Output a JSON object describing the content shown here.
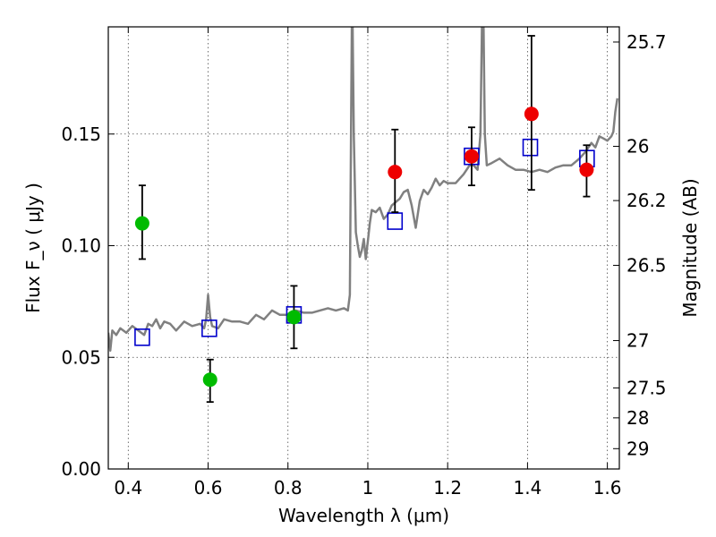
{
  "chart_data": {
    "type": "scatter",
    "xlabel": "Wavelength  λ (μm)",
    "ylabel": "Flux  F_ν  ( μJy )",
    "ylabel_right": "Magnitude (AB)",
    "xlim": [
      0.35,
      1.63
    ],
    "ylim": [
      0.0,
      0.198
    ],
    "grid": true,
    "x_ticks": [
      0.4,
      0.6,
      0.8,
      1.0,
      1.2,
      1.4,
      1.6
    ],
    "x_tick_labels": [
      "0.4",
      "0.6",
      "0.8",
      "1",
      "1.2",
      "1.4",
      "1.6"
    ],
    "y_ticks": [
      0.0,
      0.05,
      0.1,
      0.15
    ],
    "y_tick_labels": [
      "0.00",
      "0.05",
      "0.10",
      "0.15"
    ],
    "right_ticks": [
      {
        "label": "25.7",
        "flux": 0.1912
      },
      {
        "label": "26",
        "flux": 0.1445
      },
      {
        "label": "26.2",
        "flux": 0.1202
      },
      {
        "label": "26.5",
        "flux": 0.0912
      },
      {
        "label": "27",
        "flux": 0.0575
      },
      {
        "label": "27.5",
        "flux": 0.0363
      },
      {
        "label": "28",
        "flux": 0.0229
      },
      {
        "label": "29",
        "flux": 0.0091
      }
    ],
    "series": [
      {
        "kind": "line",
        "color": "#808080",
        "points": [
          [
            0.35,
            0.061
          ],
          [
            0.355,
            0.053
          ],
          [
            0.36,
            0.062
          ],
          [
            0.37,
            0.06
          ],
          [
            0.38,
            0.063
          ],
          [
            0.395,
            0.061
          ],
          [
            0.41,
            0.064
          ],
          [
            0.425,
            0.062
          ],
          [
            0.44,
            0.06
          ],
          [
            0.45,
            0.065
          ],
          [
            0.46,
            0.064
          ],
          [
            0.47,
            0.067
          ],
          [
            0.48,
            0.063
          ],
          [
            0.49,
            0.066
          ],
          [
            0.505,
            0.065
          ],
          [
            0.52,
            0.062
          ],
          [
            0.54,
            0.066
          ],
          [
            0.56,
            0.064
          ],
          [
            0.58,
            0.065
          ],
          [
            0.59,
            0.063
          ],
          [
            0.595,
            0.067
          ],
          [
            0.6,
            0.078
          ],
          [
            0.605,
            0.068
          ],
          [
            0.61,
            0.064
          ],
          [
            0.625,
            0.063
          ],
          [
            0.64,
            0.067
          ],
          [
            0.66,
            0.066
          ],
          [
            0.68,
            0.066
          ],
          [
            0.7,
            0.065
          ],
          [
            0.72,
            0.069
          ],
          [
            0.74,
            0.067
          ],
          [
            0.76,
            0.071
          ],
          [
            0.78,
            0.069
          ],
          [
            0.8,
            0.069
          ],
          [
            0.82,
            0.071
          ],
          [
            0.84,
            0.07
          ],
          [
            0.86,
            0.07
          ],
          [
            0.88,
            0.071
          ],
          [
            0.9,
            0.072
          ],
          [
            0.92,
            0.071
          ],
          [
            0.94,
            0.072
          ],
          [
            0.95,
            0.071
          ],
          [
            0.955,
            0.078
          ],
          [
            0.958,
            0.15
          ],
          [
            0.96,
            0.198
          ],
          [
            0.962,
            0.198
          ],
          [
            0.965,
            0.15
          ],
          [
            0.97,
            0.106
          ],
          [
            0.975,
            0.1
          ],
          [
            0.98,
            0.095
          ],
          [
            0.985,
            0.098
          ],
          [
            0.99,
            0.103
          ],
          [
            0.995,
            0.094
          ],
          [
            1.0,
            0.102
          ],
          [
            1.005,
            0.11
          ],
          [
            1.01,
            0.116
          ],
          [
            1.02,
            0.115
          ],
          [
            1.03,
            0.117
          ],
          [
            1.04,
            0.112
          ],
          [
            1.05,
            0.114
          ],
          [
            1.06,
            0.118
          ],
          [
            1.08,
            0.121
          ],
          [
            1.09,
            0.124
          ],
          [
            1.1,
            0.125
          ],
          [
            1.11,
            0.118
          ],
          [
            1.12,
            0.108
          ],
          [
            1.13,
            0.12
          ],
          [
            1.14,
            0.125
          ],
          [
            1.15,
            0.123
          ],
          [
            1.16,
            0.126
          ],
          [
            1.17,
            0.13
          ],
          [
            1.18,
            0.127
          ],
          [
            1.19,
            0.129
          ],
          [
            1.2,
            0.128
          ],
          [
            1.22,
            0.128
          ],
          [
            1.24,
            0.132
          ],
          [
            1.255,
            0.136
          ],
          [
            1.265,
            0.136
          ],
          [
            1.275,
            0.134
          ],
          [
            1.282,
            0.15
          ],
          [
            1.286,
            0.198
          ],
          [
            1.29,
            0.198
          ],
          [
            1.293,
            0.15
          ],
          [
            1.298,
            0.136
          ],
          [
            1.31,
            0.137
          ],
          [
            1.33,
            0.139
          ],
          [
            1.35,
            0.136
          ],
          [
            1.37,
            0.134
          ],
          [
            1.39,
            0.134
          ],
          [
            1.41,
            0.133
          ],
          [
            1.43,
            0.134
          ],
          [
            1.45,
            0.133
          ],
          [
            1.47,
            0.135
          ],
          [
            1.49,
            0.136
          ],
          [
            1.51,
            0.136
          ],
          [
            1.53,
            0.139
          ],
          [
            1.545,
            0.142
          ],
          [
            1.56,
            0.146
          ],
          [
            1.57,
            0.144
          ],
          [
            1.58,
            0.149
          ],
          [
            1.59,
            0.148
          ],
          [
            1.6,
            0.147
          ],
          [
            1.61,
            0.149
          ],
          [
            1.615,
            0.151
          ],
          [
            1.62,
            0.16
          ],
          [
            1.625,
            0.166
          ]
        ]
      },
      {
        "kind": "open-square",
        "color": "#0000cc",
        "points": [
          [
            0.435,
            0.059
          ],
          [
            0.603,
            0.063
          ],
          [
            0.815,
            0.069
          ],
          [
            1.068,
            0.111
          ],
          [
            1.26,
            0.14
          ],
          [
            1.407,
            0.144
          ],
          [
            1.549,
            0.139
          ]
        ]
      },
      {
        "kind": "errorbar-point",
        "color": "#00bb00",
        "points": [
          {
            "x": 0.435,
            "y": 0.11,
            "lo": 0.094,
            "hi": 0.127
          },
          {
            "x": 0.605,
            "y": 0.04,
            "lo": 0.03,
            "hi": 0.049
          },
          {
            "x": 0.815,
            "y": 0.068,
            "lo": 0.054,
            "hi": 0.082
          }
        ]
      },
      {
        "kind": "errorbar-point",
        "color": "#ee0000",
        "points": [
          {
            "x": 1.068,
            "y": 0.133,
            "lo": 0.115,
            "hi": 0.152
          },
          {
            "x": 1.26,
            "y": 0.14,
            "lo": 0.127,
            "hi": 0.153
          },
          {
            "x": 1.41,
            "y": 0.159,
            "lo": 0.125,
            "hi": 0.194
          },
          {
            "x": 1.548,
            "y": 0.134,
            "lo": 0.122,
            "hi": 0.145
          }
        ]
      }
    ]
  }
}
